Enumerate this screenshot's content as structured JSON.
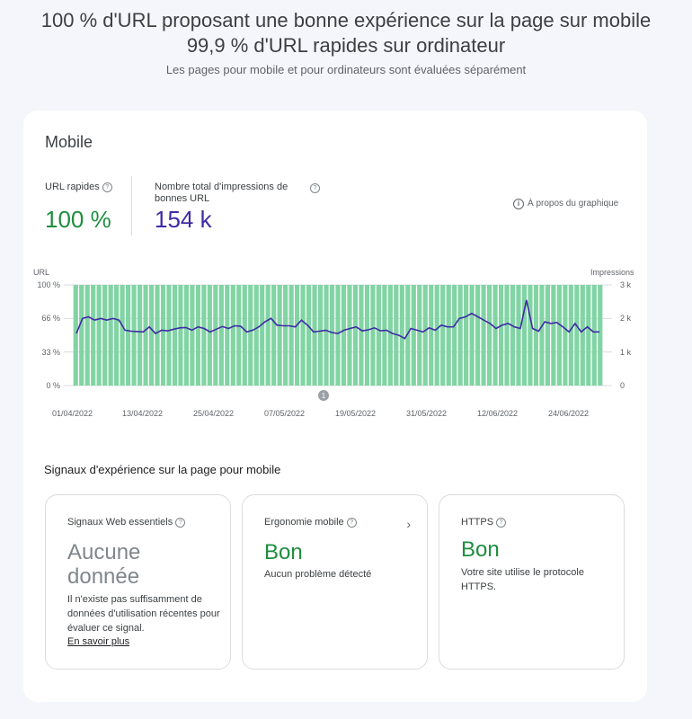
{
  "header": {
    "line1": "100 % d'URL proposant une bonne expérience sur la page sur mobile",
    "line2": "99,9 % d'URL rapides sur ordinateur",
    "subtitle": "Les pages pour mobile et pour ordinateurs sont évaluées séparément"
  },
  "card": {
    "title": "Mobile",
    "metrics": [
      {
        "label": "URL rapides",
        "value": "100 %",
        "color": "#1e8e3e"
      },
      {
        "label": "Nombre total d'impressions de bonnes URL",
        "value": "154 k",
        "color": "#3f2ba6"
      }
    ],
    "about_label": "À propos du graphique"
  },
  "chart_data": {
    "type": "bar",
    "ylabel_left": "URL",
    "ylabel_right": "Impressions",
    "left_ticks": [
      "100 %",
      "66 %",
      "33 %",
      "0 %"
    ],
    "right_ticks": [
      "3 k",
      "2 k",
      "1 k",
      "0"
    ],
    "x_tick_labels": [
      "01/04/2022",
      "13/04/2022",
      "25/04/2022",
      "07/05/2022",
      "19/05/2022",
      "31/05/2022",
      "12/06/2022",
      "24/06/2022"
    ],
    "annotation": "1",
    "series": [
      {
        "name": "URL",
        "type": "bar",
        "color": "#81d4a3",
        "values_percent": [
          100,
          100,
          100,
          100,
          100,
          100,
          100,
          100,
          100,
          100,
          100,
          100,
          100,
          100,
          100,
          100,
          100,
          100,
          100,
          100,
          100,
          100,
          100,
          100,
          100,
          100,
          100,
          100,
          100,
          100,
          100,
          100,
          100,
          100,
          100,
          100,
          100,
          100,
          100,
          100,
          100,
          100,
          100,
          100,
          100,
          100,
          100,
          100,
          100,
          100,
          100,
          100,
          100,
          100,
          100,
          100,
          100,
          100,
          100,
          100,
          100,
          100,
          100,
          100,
          100,
          100,
          100,
          100,
          100,
          100,
          100,
          100,
          100,
          100,
          100,
          100,
          100,
          100,
          100,
          100,
          100,
          100,
          100,
          100,
          100,
          100,
          100,
          100,
          100,
          100,
          100
        ]
      },
      {
        "name": "Impressions",
        "type": "line",
        "color": "#3f2ba6",
        "values": [
          1550,
          2000,
          2050,
          1950,
          2000,
          1950,
          2000,
          1950,
          1650,
          1620,
          1610,
          1600,
          1750,
          1550,
          1650,
          1630,
          1680,
          1720,
          1730,
          1650,
          1750,
          1700,
          1600,
          1680,
          1760,
          1700,
          1780,
          1770,
          1600,
          1650,
          1750,
          1900,
          2000,
          1800,
          1780,
          1780,
          1750,
          1950,
          1800,
          1600,
          1620,
          1650,
          1580,
          1550,
          1650,
          1700,
          1750,
          1630,
          1660,
          1720,
          1630,
          1650,
          1550,
          1500,
          1400,
          1700,
          1650,
          1600,
          1720,
          1650,
          1800,
          1750,
          1750,
          2000,
          2050,
          2150,
          2050,
          1950,
          1850,
          1700,
          1800,
          1850,
          1750,
          1700,
          2550,
          1700,
          1620,
          1900,
          1850,
          1880,
          1750,
          1600,
          1850,
          1600,
          1750,
          1600,
          1600
        ]
      }
    ],
    "ylim_left": [
      0,
      100
    ],
    "ylim_right": [
      0,
      3000
    ]
  },
  "signals": {
    "title": "Signaux d'expérience sur la page pour mobile",
    "cards": [
      {
        "name": "Signaux Web essentiels",
        "status": "Aucune donnée",
        "status_color": "#80868b",
        "desc": "Il n'existe pas suffisamment de données d'utilisation récentes pour évaluer ce signal.",
        "link": "En savoir plus"
      },
      {
        "name": "Ergonomie mobile",
        "status": "Bon",
        "status_color": "#1e8e3e",
        "desc": "Aucun problème détecté"
      },
      {
        "name": "HTTPS",
        "status": "Bon",
        "status_color": "#1e8e3e",
        "desc": "Votre site utilise le protocole HTTPS."
      }
    ]
  }
}
